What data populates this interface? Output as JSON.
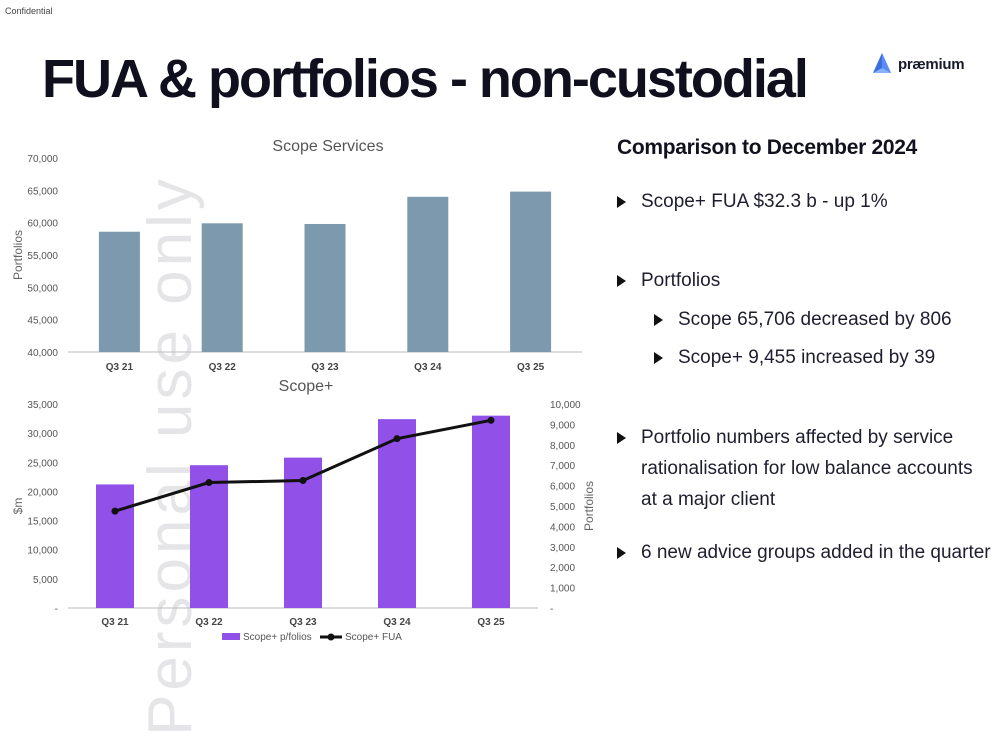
{
  "header": {
    "confidential": "Confidential",
    "title": "FUA & portfolios - non-custodial",
    "logo_text": "præmium",
    "watermark": "Personal use only"
  },
  "colors": {
    "scope_bar": "#7d99ae",
    "scope_plus_bar": "#9150e8",
    "line": "#111111",
    "logo_blue": "#3b6fe0"
  },
  "chart_data": [
    {
      "type": "bar",
      "title": "Scope Services",
      "categories": [
        "Q3 21",
        "Q3 22",
        "Q3 23",
        "Q3 24",
        "Q3 25"
      ],
      "values": [
        58600,
        59900,
        59800,
        64000,
        64800
      ],
      "ylabel": "Portfolios",
      "ylim": [
        40000,
        70000
      ],
      "yticks": [
        "40,000",
        "45,000",
        "50,000",
        "55,000",
        "60,000",
        "65,000",
        "70,000"
      ],
      "grid": false
    },
    {
      "type": "bar",
      "title": "Scope+",
      "categories": [
        "Q3 21",
        "Q3 22",
        "Q3 23",
        "Q3 24",
        "Q3 25"
      ],
      "series": [
        {
          "name": "Scope+ p/folios",
          "type": "bar",
          "axis": "left",
          "values": [
            21200,
            24500,
            25800,
            32400,
            33000
          ]
        },
        {
          "name": "Scope+ FUA",
          "type": "line",
          "axis": "right",
          "values": [
            4750,
            6150,
            6250,
            8300,
            9200
          ]
        }
      ],
      "ylabel": "$m",
      "y2label": "Portfolios",
      "ylim": [
        0,
        35000
      ],
      "y2lim": [
        0,
        10000
      ],
      "yticks": [
        "-",
        "5,000",
        "10,000",
        "15,000",
        "20,000",
        "25,000",
        "30,000",
        "35,000"
      ],
      "y2ticks": [
        "-",
        "1,000",
        "2,000",
        "3,000",
        "4,000",
        "5,000",
        "6,000",
        "7,000",
        "8,000",
        "9,000",
        "10,000"
      ],
      "legend": "bottom"
    }
  ],
  "comparison": {
    "title": "Comparison to December 2024",
    "bullets": [
      "Scope+ FUA $32.3 b - up 1%",
      "Portfolios",
      "Scope 65,706 decreased by 806",
      "Scope+ 9,455 increased by 39",
      "Portfolio numbers affected by service rationalisation for low balance accounts at a major client",
      "6 new advice groups added in the quarter"
    ]
  }
}
